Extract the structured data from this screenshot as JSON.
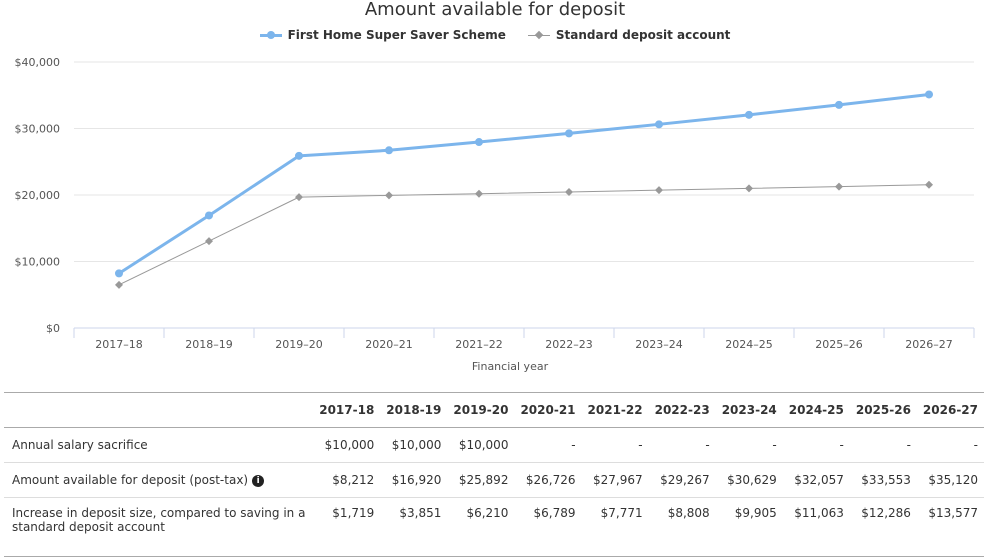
{
  "chart_data": {
    "type": "line",
    "title": "Amount available for deposit",
    "xlabel": "Financial year",
    "ylabel": "",
    "categories": [
      "2017–18",
      "2018–19",
      "2019–20",
      "2020–21",
      "2021–22",
      "2022–23",
      "2023–24",
      "2024–25",
      "2025–26",
      "2026–27"
    ],
    "ylim": [
      0,
      40000
    ],
    "yticks": [
      0,
      10000,
      20000,
      30000,
      40000
    ],
    "ytick_labels": [
      "$0",
      "$10,000",
      "$20,000",
      "$30,000",
      "$40,000"
    ],
    "grid": true,
    "legend_position": "top-center",
    "series": [
      {
        "name": "First Home Super Saver Scheme",
        "color": "#7cb5ec",
        "marker": "circle",
        "values": [
          8212,
          16920,
          25892,
          26726,
          27967,
          29267,
          30629,
          32057,
          33553,
          35120
        ]
      },
      {
        "name": "Standard deposit account",
        "color": "#999999",
        "marker": "diamond",
        "values": [
          6493,
          13069,
          19682,
          19937,
          20196,
          20459,
          20724,
          20994,
          21267,
          21543
        ]
      }
    ]
  },
  "table": {
    "headers": [
      "",
      "2017-18",
      "2018-19",
      "2019-20",
      "2020-21",
      "2021-22",
      "2022-23",
      "2023-24",
      "2024-25",
      "2025-26",
      "2026-27"
    ],
    "rows": [
      {
        "label": "Annual salary sacrifice",
        "info": false,
        "cells": [
          "$10,000",
          "$10,000",
          "$10,000",
          "-",
          "-",
          "-",
          "-",
          "-",
          "-",
          "-"
        ]
      },
      {
        "label": "Amount available for deposit (post-tax)",
        "info": true,
        "cells": [
          "$8,212",
          "$16,920",
          "$25,892",
          "$26,726",
          "$27,967",
          "$29,267",
          "$30,629",
          "$32,057",
          "$33,553",
          "$35,120"
        ]
      },
      {
        "label": "Increase in deposit size, compared to saving in a standard deposit account",
        "info": false,
        "cells": [
          "$1,719",
          "$3,851",
          "$6,210",
          "$6,789",
          "$7,771",
          "$8,808",
          "$9,905",
          "$11,063",
          "$12,286",
          "$13,577"
        ]
      }
    ]
  }
}
